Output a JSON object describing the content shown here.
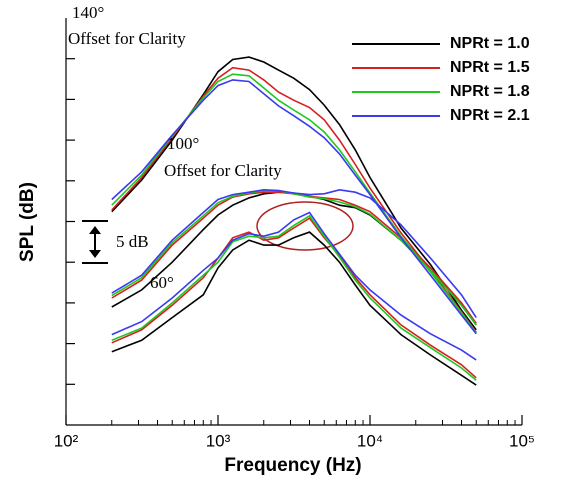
{
  "chart_data": {
    "type": "line",
    "xlabel": "Frequency (Hz)",
    "ylabel": "SPL (dB)",
    "log_x": true,
    "xlim": [
      100,
      100000
    ],
    "xticks": [
      {
        "value": 100,
        "label": "10²"
      },
      {
        "value": 1000,
        "label": "10³"
      },
      {
        "value": 10000,
        "label": "10⁴"
      },
      {
        "value": 100000,
        "label": "10⁵"
      }
    ],
    "ylim": [
      0,
      50
    ],
    "yticks": [
      5,
      10,
      15,
      20,
      25,
      30,
      35,
      40,
      45
    ],
    "ytick_labels": false,
    "legend": "top-right",
    "x": [
      200,
      315,
      500,
      800,
      1000,
      1250,
      1600,
      2000,
      2500,
      3150,
      4000,
      5000,
      6300,
      8000,
      10000,
      16000,
      25000,
      40000,
      50000
    ],
    "series": [
      {
        "name": "NPRt = 1.0",
        "color": "#000000",
        "curves": [
          [
            9.0,
            10.4,
            13.2,
            16.0,
            19.3,
            21.5,
            22.7,
            22.1,
            22.1,
            23.0,
            23.7,
            22.1,
            20.0,
            17.2,
            14.7,
            11.1,
            8.6,
            6.1,
            4.9
          ],
          [
            14.5,
            16.6,
            20.0,
            24.0,
            25.8,
            27.0,
            27.9,
            28.4,
            28.6,
            28.5,
            28.1,
            27.7,
            27.0,
            26.7,
            25.8,
            22.7,
            19.0,
            14.7,
            12.3
          ],
          [
            26.2,
            30.1,
            35.0,
            40.6,
            43.4,
            44.9,
            45.2,
            44.6,
            43.6,
            42.6,
            41.2,
            39.3,
            36.9,
            33.8,
            30.4,
            24.2,
            19.7,
            14.1,
            11.7
          ]
        ]
      },
      {
        "name": "NPRt = 1.5",
        "color": "#d62020",
        "curves": [
          [
            10.1,
            11.7,
            14.7,
            18.1,
            20.5,
            23.0,
            23.7,
            22.7,
            23.0,
            24.2,
            25.4,
            23.0,
            20.8,
            18.1,
            16.0,
            12.3,
            9.8,
            7.4,
            5.8
          ],
          [
            15.6,
            17.8,
            22.1,
            25.4,
            27.0,
            28.0,
            28.4,
            28.6,
            28.6,
            28.4,
            28.1,
            27.9,
            27.7,
            27.0,
            26.2,
            23.0,
            19.3,
            15.0,
            12.5
          ],
          [
            26.4,
            30.4,
            35.3,
            40.4,
            42.6,
            43.9,
            43.6,
            42.4,
            40.9,
            39.9,
            39.0,
            37.5,
            35.0,
            32.0,
            29.1,
            23.6,
            19.0,
            13.9,
            11.4
          ]
        ]
      },
      {
        "name": "NPRt = 1.8",
        "color": "#1ec81e",
        "curves": [
          [
            10.4,
            11.9,
            15.0,
            18.4,
            20.0,
            22.5,
            23.2,
            23.0,
            23.2,
            24.5,
            25.7,
            23.2,
            20.6,
            17.8,
            15.6,
            11.9,
            9.5,
            7.0,
            5.5
          ],
          [
            15.9,
            18.1,
            22.4,
            25.7,
            27.3,
            28.1,
            28.5,
            28.8,
            28.8,
            28.4,
            28.0,
            27.8,
            27.4,
            26.8,
            25.9,
            22.7,
            19.0,
            14.7,
            12.3
          ],
          [
            27.0,
            30.7,
            35.5,
            40.2,
            42.2,
            43.1,
            42.9,
            41.4,
            39.9,
            38.7,
            37.5,
            36.0,
            33.8,
            31.1,
            28.5,
            23.2,
            18.8,
            13.8,
            11.3
          ]
        ]
      },
      {
        "name": "NPRt = 2.1",
        "color": "#3a3af0",
        "curves": [
          [
            11.1,
            12.7,
            15.6,
            19.0,
            20.5,
            22.7,
            23.5,
            23.2,
            23.7,
            25.2,
            26.1,
            23.5,
            21.0,
            18.4,
            16.6,
            13.5,
            11.2,
            9.2,
            8.0
          ],
          [
            16.2,
            18.4,
            22.7,
            26.1,
            27.7,
            28.3,
            28.6,
            28.9,
            28.8,
            28.5,
            28.3,
            28.4,
            28.9,
            28.6,
            27.9,
            24.6,
            20.5,
            16.0,
            13.2
          ],
          [
            27.7,
            31.1,
            35.6,
            39.9,
            41.7,
            42.4,
            42.2,
            40.7,
            39.2,
            38.0,
            36.7,
            35.3,
            33.3,
            30.7,
            28.3,
            23.0,
            18.4,
            13.5,
            11.2
          ]
        ]
      }
    ],
    "annotations": [
      "140°",
      "Offset for Clarity",
      "100°",
      "Offset for Clarity",
      "60°",
      "5 dB"
    ]
  }
}
